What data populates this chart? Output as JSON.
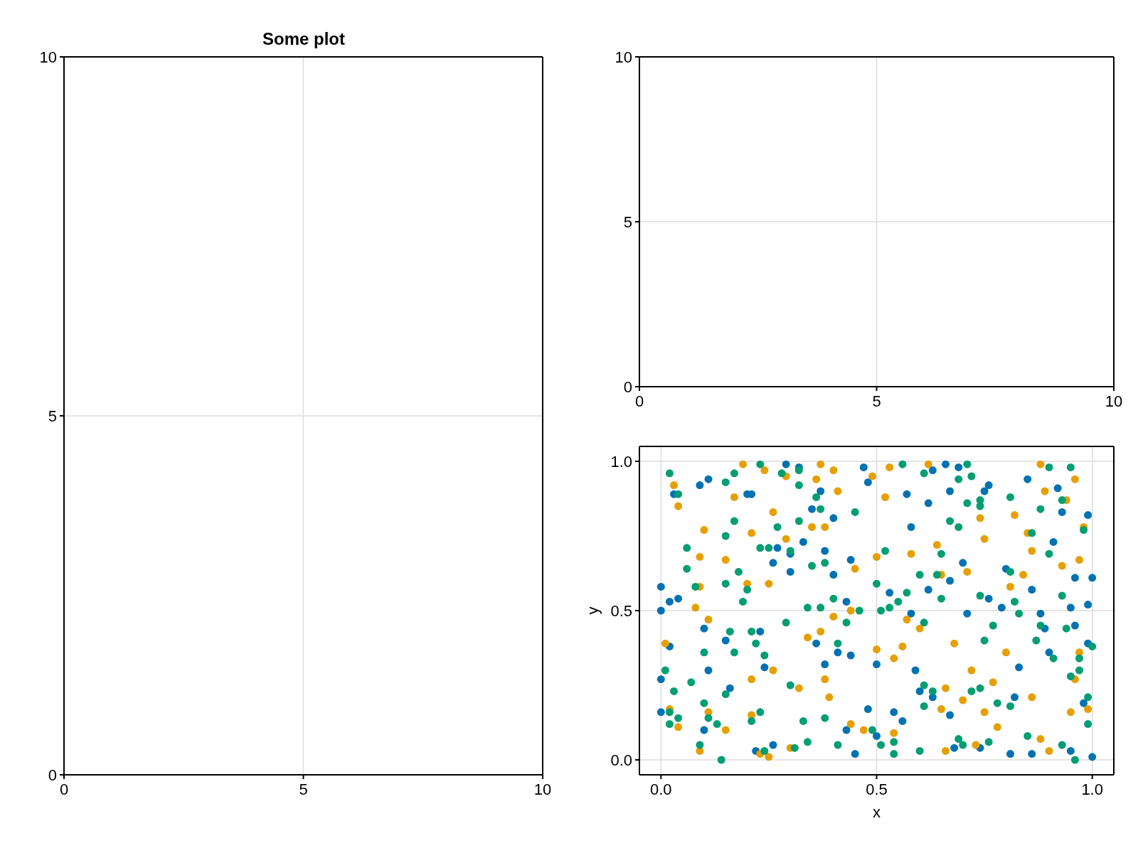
{
  "chart_data": [
    {
      "type": "scatter",
      "title": "Some plot",
      "xlim": [
        0,
        10
      ],
      "ylim": [
        0,
        10
      ],
      "xticks": [
        0,
        5,
        10
      ],
      "yticks": [
        0,
        5,
        10
      ],
      "grid": true
    },
    {
      "type": "scatter",
      "xlim": [
        0,
        10
      ],
      "ylim": [
        0,
        10
      ],
      "xticks": [
        0,
        5,
        10
      ],
      "yticks": [
        0,
        5,
        10
      ],
      "grid": true
    },
    {
      "type": "scatter",
      "xlabel": "x",
      "ylabel": "y",
      "xlim": [
        -0.05,
        1.05
      ],
      "ylim": [
        -0.05,
        1.05
      ],
      "xticks": [
        {
          "value": 0,
          "label": "0.0"
        },
        {
          "value": 0.5,
          "label": "0.5"
        },
        {
          "value": 1,
          "label": "1.0"
        }
      ],
      "yticks": [
        {
          "value": 0,
          "label": "0.0"
        },
        {
          "value": 0.5,
          "label": "0.5"
        },
        {
          "value": 1,
          "label": "1.0"
        }
      ],
      "grid": true,
      "marker": "circle",
      "series": [
        {
          "color": "#0072b2",
          "x": [
            0.0,
            0.0,
            0.0,
            0.0,
            0.02,
            0.02,
            0.04,
            0.03,
            0.09,
            0.11,
            0.1,
            0.11,
            0.1,
            0.15,
            0.16,
            0.2,
            0.21,
            0.23,
            0.24,
            0.22,
            0.26,
            0.26,
            0.27,
            0.29,
            0.3,
            0.3,
            0.32,
            0.33,
            0.35,
            0.37,
            0.38,
            0.36,
            0.38,
            0.4,
            0.4,
            0.41,
            0.44,
            0.44,
            0.45,
            0.43,
            0.43,
            0.47,
            0.48,
            0.48,
            0.5,
            0.5,
            0.53,
            0.54,
            0.56,
            0.57,
            0.58,
            0.58,
            0.59,
            0.6,
            0.62,
            0.63,
            0.62,
            0.63,
            0.66,
            0.67,
            0.67,
            0.67,
            0.68,
            0.69,
            0.7,
            0.71,
            0.74,
            0.76,
            0.76,
            0.75,
            0.8,
            0.79,
            0.81,
            0.82,
            0.83,
            0.85,
            0.86,
            0.88,
            0.9,
            0.89,
            0.91,
            0.92,
            0.93,
            0.95,
            0.96,
            0.96,
            0.98,
            0.99,
            1.0,
            0.99,
            0.99,
            1.0,
            0.95,
            0.86
          ],
          "values": [
            0.58,
            0.5,
            0.27,
            0.16,
            0.38,
            0.53,
            0.54,
            0.89,
            0.92,
            0.94,
            0.44,
            0.3,
            0.1,
            0.4,
            0.24,
            0.89,
            0.89,
            0.43,
            0.31,
            0.03,
            0.05,
            0.66,
            0.71,
            0.99,
            0.69,
            0.63,
            0.98,
            0.73,
            0.84,
            0.9,
            0.7,
            0.39,
            0.32,
            0.81,
            0.62,
            0.36,
            0.67,
            0.35,
            0.02,
            0.1,
            0.53,
            0.98,
            0.17,
            0.93,
            0.32,
            0.08,
            0.56,
            0.16,
            0.13,
            0.89,
            0.78,
            0.49,
            0.3,
            0.23,
            0.86,
            0.97,
            0.57,
            0.21,
            0.99,
            0.9,
            0.6,
            0.15,
            0.04,
            0.98,
            0.66,
            0.49,
            0.04,
            0.54,
            0.92,
            0.9,
            0.64,
            0.51,
            0.02,
            0.21,
            0.31,
            0.94,
            0.57,
            0.49,
            0.36,
            0.44,
            0.73,
            0.91,
            0.83,
            0.51,
            0.45,
            0.61,
            0.19,
            0.82,
            0.61,
            0.52,
            0.39,
            0.01,
            0.03,
            0.02
          ]
        },
        {
          "color": "#e69f00",
          "x": [
            0.01,
            0.02,
            0.03,
            0.04,
            0.04,
            0.08,
            0.09,
            0.09,
            0.1,
            0.11,
            0.09,
            0.11,
            0.17,
            0.19,
            0.21,
            0.2,
            0.15,
            0.15,
            0.21,
            0.21,
            0.23,
            0.25,
            0.24,
            0.26,
            0.25,
            0.26,
            0.29,
            0.29,
            0.3,
            0.32,
            0.34,
            0.35,
            0.36,
            0.37,
            0.38,
            0.37,
            0.38,
            0.39,
            0.4,
            0.41,
            0.4,
            0.44,
            0.45,
            0.44,
            0.47,
            0.49,
            0.5,
            0.5,
            0.52,
            0.53,
            0.54,
            0.54,
            0.56,
            0.57,
            0.58,
            0.6,
            0.62,
            0.64,
            0.65,
            0.65,
            0.66,
            0.66,
            0.68,
            0.7,
            0.71,
            0.72,
            0.73,
            0.74,
            0.75,
            0.75,
            0.77,
            0.78,
            0.8,
            0.81,
            0.82,
            0.84,
            0.85,
            0.86,
            0.86,
            0.88,
            0.88,
            0.89,
            0.9,
            0.93,
            0.94,
            0.95,
            0.96,
            0.96,
            0.97,
            0.97,
            0.99,
            0.98
          ],
          "values": [
            0.39,
            0.17,
            0.92,
            0.85,
            0.11,
            0.51,
            0.58,
            0.68,
            0.77,
            0.47,
            0.03,
            0.16,
            0.88,
            0.99,
            0.76,
            0.59,
            0.67,
            0.1,
            0.27,
            0.15,
            0.02,
            0.01,
            0.97,
            0.83,
            0.59,
            0.3,
            0.74,
            0.95,
            0.04,
            0.24,
            0.41,
            0.78,
            0.94,
            0.99,
            0.78,
            0.43,
            0.27,
            0.21,
            0.97,
            0.9,
            0.48,
            0.12,
            0.64,
            0.5,
            0.1,
            0.95,
            0.37,
            0.68,
            0.88,
            0.98,
            0.09,
            0.34,
            0.38,
            0.47,
            0.69,
            0.44,
            0.99,
            0.72,
            0.62,
            0.17,
            0.03,
            0.24,
            0.39,
            0.2,
            0.63,
            0.3,
            0.05,
            0.81,
            0.74,
            0.16,
            0.26,
            0.11,
            0.36,
            0.58,
            0.82,
            0.62,
            0.76,
            0.7,
            0.21,
            0.99,
            0.07,
            0.9,
            0.03,
            0.65,
            0.87,
            0.16,
            0.27,
            0.94,
            0.67,
            0.36,
            0.17,
            0.78
          ]
        },
        {
          "color": "#009e73",
          "x": [
            0.02,
            0.01,
            0.02,
            0.02,
            0.03,
            0.04,
            0.04,
            0.06,
            0.06,
            0.07,
            0.08,
            0.09,
            0.1,
            0.1,
            0.11,
            0.13,
            0.14,
            0.15,
            0.15,
            0.15,
            0.15,
            0.17,
            0.16,
            0.17,
            0.17,
            0.18,
            0.19,
            0.2,
            0.21,
            0.22,
            0.21,
            0.23,
            0.23,
            0.23,
            0.24,
            0.25,
            0.24,
            0.27,
            0.28,
            0.29,
            0.3,
            0.3,
            0.31,
            0.32,
            0.32,
            0.32,
            0.33,
            0.34,
            0.34,
            0.35,
            0.36,
            0.37,
            0.37,
            0.38,
            0.38,
            0.4,
            0.41,
            0.41,
            0.43,
            0.45,
            0.46,
            0.49,
            0.5,
            0.51,
            0.51,
            0.52,
            0.53,
            0.54,
            0.54,
            0.55,
            0.56,
            0.57,
            0.6,
            0.6,
            0.61,
            0.61,
            0.61,
            0.61,
            0.63,
            0.64,
            0.65,
            0.65,
            0.67,
            0.69,
            0.69,
            0.69,
            0.7,
            0.71,
            0.71,
            0.72,
            0.72,
            0.74,
            0.74,
            0.74,
            0.75,
            0.74,
            0.76,
            0.77,
            0.78,
            0.81,
            0.81,
            0.81,
            0.82,
            0.83,
            0.85,
            0.86,
            0.87,
            0.88,
            0.88,
            0.9,
            0.9,
            0.91,
            0.93,
            0.93,
            0.93,
            0.94,
            0.95,
            0.95,
            0.96,
            0.97,
            0.97,
            0.98,
            0.99,
            0.99,
            1.0
          ],
          "values": [
            0.96,
            0.3,
            0.12,
            0.16,
            0.23,
            0.89,
            0.14,
            0.71,
            0.64,
            0.26,
            0.58,
            0.05,
            0.36,
            0.19,
            0.14,
            0.12,
            0.0,
            0.59,
            0.75,
            0.93,
            0.22,
            0.36,
            0.43,
            0.8,
            0.96,
            0.63,
            0.53,
            0.57,
            0.43,
            0.39,
            0.13,
            0.99,
            0.71,
            0.16,
            0.03,
            0.71,
            0.35,
            0.78,
            0.96,
            0.46,
            0.25,
            0.7,
            0.04,
            0.92,
            0.8,
            0.97,
            0.13,
            0.51,
            0.06,
            0.65,
            0.88,
            0.84,
            0.51,
            0.14,
            0.66,
            0.54,
            0.39,
            0.05,
            0.46,
            0.83,
            0.5,
            0.1,
            0.59,
            0.5,
            0.05,
            0.7,
            0.51,
            0.06,
            0.02,
            0.53,
            0.99,
            0.56,
            0.62,
            0.03,
            0.96,
            0.46,
            0.18,
            0.25,
            0.23,
            0.62,
            0.69,
            0.54,
            0.8,
            0.94,
            0.78,
            0.07,
            0.05,
            0.86,
            0.99,
            0.95,
            0.23,
            0.87,
            0.55,
            0.85,
            0.4,
            0.24,
            0.06,
            0.45,
            0.19,
            0.18,
            0.88,
            0.63,
            0.53,
            0.49,
            0.08,
            0.76,
            0.4,
            0.84,
            0.45,
            0.69,
            0.98,
            0.34,
            0.05,
            0.87,
            0.55,
            0.44,
            0.28,
            0.98,
            0.0,
            0.3,
            0.34,
            0.77,
            0.12,
            0.21,
            0.38
          ]
        }
      ]
    }
  ]
}
